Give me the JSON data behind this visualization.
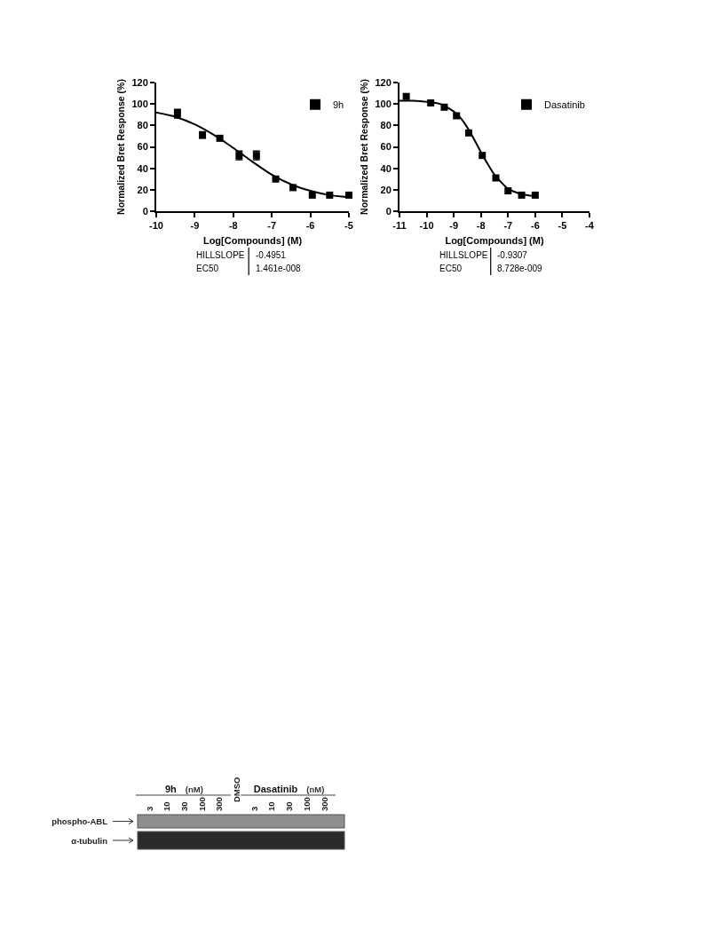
{
  "chart_data": [
    {
      "type": "scatter",
      "xlabel": "Log[Compounds] (M)",
      "ylabel": "Normalized Bret Response (%)",
      "xlim": [
        -10,
        -5
      ],
      "xticks": [
        -10,
        -9,
        -8,
        -7,
        -6,
        -5
      ],
      "ylim": [
        0,
        120
      ],
      "yticks": [
        0,
        20,
        40,
        60,
        80,
        100,
        120
      ],
      "legend": "top right",
      "marker": "square",
      "series": [
        {
          "name": "9h",
          "color": "#000000",
          "x": [
            -9.45,
            -8.8,
            -8.35,
            -7.85,
            -7.4,
            -6.9,
            -6.45,
            -5.95,
            -5.5,
            -5
          ],
          "values": [
            91,
            71,
            68,
            52,
            52,
            30,
            22,
            15,
            15,
            15
          ],
          "errors": [
            4,
            3,
            null,
            4,
            4,
            null,
            null,
            null,
            null,
            null
          ]
        },
        {
          "type": "line",
          "color": "#000000",
          "marker": "none",
          "x": [
            -10,
            -9.5,
            -9,
            -8.5,
            -8,
            -7.5,
            -7,
            -6.5,
            -6,
            -5.5,
            -5
          ],
          "values": [
            92,
            88,
            81,
            71,
            59,
            46,
            34,
            25,
            19,
            15,
            13
          ]
        }
      ],
      "annotations": [
        "HILLSLOPE",
        "-0.4951",
        "EC50",
        "1.461e-008"
      ]
    },
    {
      "type": "scatter",
      "xlabel": "Log[Compounds] (M)",
      "ylabel": "Normalized Bret Response (%)",
      "xlim": [
        -11,
        -4
      ],
      "xticks": [
        -11,
        -10,
        -9,
        -8,
        -7,
        -6,
        -5,
        -4
      ],
      "ylim": [
        0,
        120
      ],
      "yticks": [
        0,
        20,
        40,
        60,
        80,
        100,
        120
      ],
      "legend": "top right",
      "marker": "square",
      "series": [
        {
          "name": "Dasatinib",
          "color": "#000000",
          "x": [
            -10.75,
            -9.85,
            -9.35,
            -8.9,
            -8.45,
            -7.95,
            -7.45,
            -7,
            -6.5,
            -6
          ],
          "values": [
            107,
            101,
            97,
            89,
            73,
            52,
            31,
            19,
            15,
            15
          ]
        },
        {
          "type": "line",
          "color": "#000000",
          "marker": "none",
          "x": [
            -11,
            -10.5,
            -10,
            -9.5,
            -9,
            -8.75,
            -8.5,
            -8.25,
            -8,
            -7.75,
            -7.5,
            -7,
            -6.5,
            -6
          ],
          "values": [
            103,
            103,
            102,
            100,
            93,
            87,
            78,
            67,
            55,
            44,
            34,
            21,
            16,
            14
          ]
        }
      ],
      "annotations": [
        "HILLSLOPE",
        "-0.9307",
        "EC50",
        "8.728e-009"
      ]
    },
    {
      "type": "other",
      "categories": [
        "3",
        "10",
        "30",
        "100",
        "300",
        "DMSO",
        "3",
        "10",
        "30",
        "100",
        "300"
      ],
      "y_categories": [
        "phospho-ABL",
        "α-tubulin"
      ],
      "annotations": [
        "9h",
        "(nM)",
        "Dasatinib",
        "(nM)"
      ]
    }
  ]
}
